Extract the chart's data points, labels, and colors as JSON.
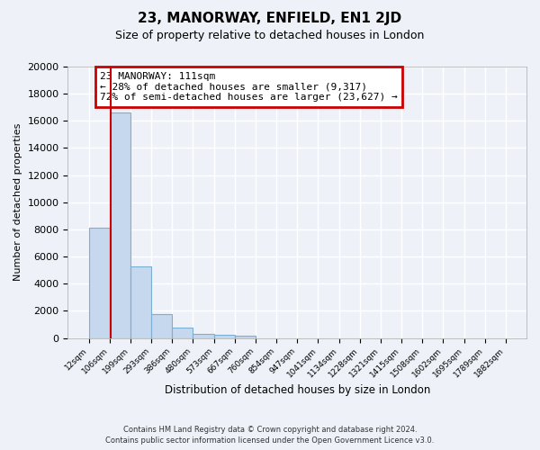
{
  "title": "23, MANORWAY, ENFIELD, EN1 2JD",
  "subtitle": "Size of property relative to detached houses in London",
  "bar_values": [
    8100,
    16600,
    5300,
    1750,
    750,
    300,
    250,
    150,
    0,
    0,
    0,
    0,
    0,
    0,
    0,
    0,
    0,
    0,
    0,
    0
  ],
  "bar_labels": [
    "12sqm",
    "106sqm",
    "199sqm",
    "293sqm",
    "386sqm",
    "480sqm",
    "573sqm",
    "667sqm",
    "760sqm",
    "854sqm",
    "947sqm",
    "1041sqm",
    "1134sqm",
    "1228sqm",
    "1321sqm",
    "1415sqm",
    "1508sqm",
    "1602sqm",
    "1695sqm",
    "1789sqm",
    "1882sqm"
  ],
  "bar_color": "#c5d8ed",
  "bar_edge_color": "#7bafd4",
  "red_line_color": "#cc0000",
  "ylabel": "Number of detached properties",
  "xlabel": "Distribution of detached houses by size in London",
  "ylim": [
    0,
    20000
  ],
  "yticks": [
    0,
    2000,
    4000,
    6000,
    8000,
    10000,
    12000,
    14000,
    16000,
    18000,
    20000
  ],
  "annotation_title": "23 MANORWAY: 111sqm",
  "annotation_line1": "← 28% of detached houses are smaller (9,317)",
  "annotation_line2": "72% of semi-detached houses are larger (23,627) →",
  "annotation_box_color": "#ffffff",
  "annotation_box_edge": "#cc0000",
  "bg_color": "#eef2f8",
  "grid_color": "#ffffff",
  "footer1": "Contains HM Land Registry data © Crown copyright and database right 2024.",
  "footer2": "Contains public sector information licensed under the Open Government Licence v3.0."
}
